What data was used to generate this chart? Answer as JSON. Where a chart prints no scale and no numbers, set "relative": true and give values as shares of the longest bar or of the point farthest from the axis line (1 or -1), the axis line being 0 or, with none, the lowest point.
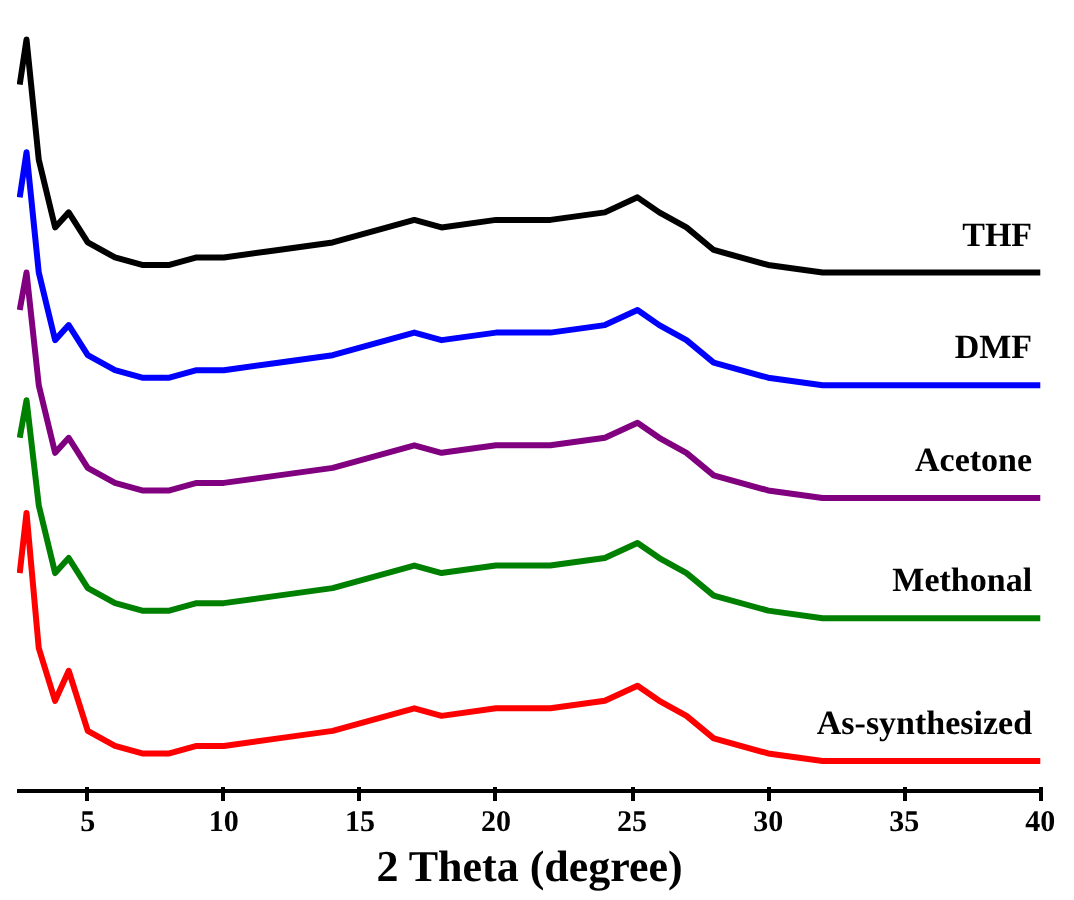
{
  "chart_data": {
    "type": "line",
    "relative": true,
    "xlabel": "2 Theta (degree)",
    "xlim": [
      2.4,
      40.1
    ],
    "xticks": [
      5,
      10,
      15,
      20,
      25,
      30,
      35,
      40
    ],
    "grid": false,
    "line_style": "solid",
    "marker": "none",
    "x": [
      2.5,
      2.75,
      3.2,
      3.8,
      4.3,
      5,
      6,
      7,
      8,
      9,
      10,
      12,
      14,
      16,
      17,
      18,
      20,
      22,
      24,
      25.2,
      26,
      27,
      28,
      30,
      32,
      35,
      40
    ],
    "series": [
      {
        "name": "THF",
        "color": "#000000",
        "values": [
          0.94,
          1.0,
          0.84,
          0.75,
          0.77,
          0.73,
          0.71,
          0.7,
          0.7,
          0.71,
          0.71,
          0.72,
          0.73,
          0.75,
          0.76,
          0.75,
          0.76,
          0.76,
          0.77,
          0.79,
          0.77,
          0.75,
          0.72,
          0.7,
          0.69,
          0.69,
          0.69
        ]
      },
      {
        "name": "DMF",
        "color": "#0000ff",
        "values": [
          0.79,
          0.85,
          0.69,
          0.6,
          0.62,
          0.58,
          0.56,
          0.55,
          0.55,
          0.56,
          0.56,
          0.57,
          0.58,
          0.6,
          0.61,
          0.6,
          0.61,
          0.61,
          0.62,
          0.64,
          0.62,
          0.6,
          0.57,
          0.55,
          0.54,
          0.54,
          0.54
        ]
      },
      {
        "name": "Acetone",
        "color": "#800080",
        "values": [
          0.64,
          0.69,
          0.54,
          0.45,
          0.47,
          0.43,
          0.41,
          0.4,
          0.4,
          0.41,
          0.41,
          0.42,
          0.43,
          0.45,
          0.46,
          0.45,
          0.46,
          0.46,
          0.47,
          0.49,
          0.47,
          0.45,
          0.42,
          0.4,
          0.39,
          0.39,
          0.39
        ]
      },
      {
        "name": "Methonal",
        "color": "#008000",
        "values": [
          0.47,
          0.52,
          0.38,
          0.29,
          0.31,
          0.27,
          0.25,
          0.24,
          0.24,
          0.25,
          0.25,
          0.26,
          0.27,
          0.29,
          0.3,
          0.29,
          0.3,
          0.3,
          0.31,
          0.33,
          0.31,
          0.29,
          0.26,
          0.24,
          0.23,
          0.23,
          0.23
        ]
      },
      {
        "name": "As-synthesized",
        "color": "#ff0000",
        "values": [
          0.29,
          0.37,
          0.19,
          0.12,
          0.16,
          0.08,
          0.06,
          0.05,
          0.05,
          0.06,
          0.06,
          0.07,
          0.08,
          0.1,
          0.11,
          0.1,
          0.11,
          0.11,
          0.12,
          0.14,
          0.12,
          0.1,
          0.07,
          0.05,
          0.04,
          0.04,
          0.04
        ]
      }
    ]
  }
}
